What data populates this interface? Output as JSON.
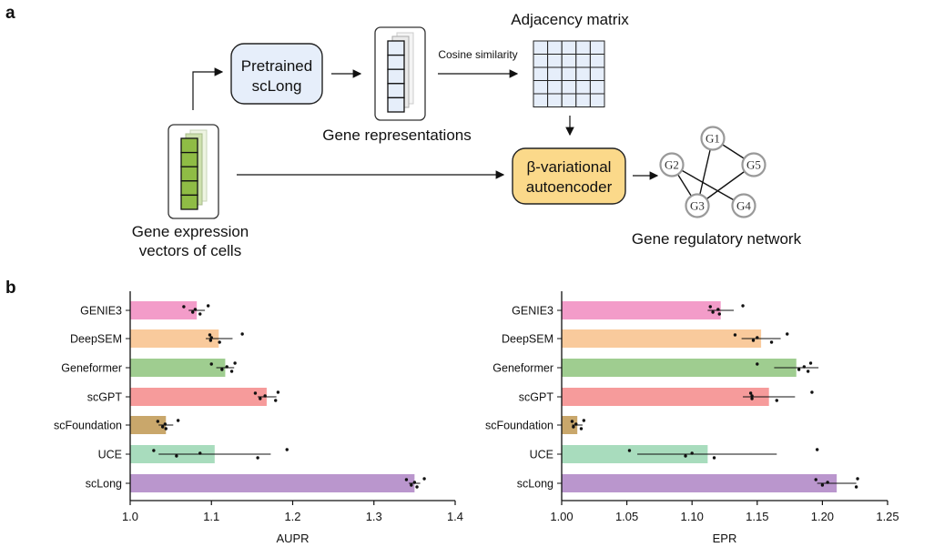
{
  "panel_a": {
    "label": "a",
    "pretrained_box": [
      "Pretrained",
      "scLong"
    ],
    "gene_representations": "Gene representations",
    "cosine_similarity": "Cosine similarity",
    "adjacency_matrix": "Adjacency matrix",
    "vae_box": [
      "β-variational",
      "autoencoder"
    ],
    "gene_expression": [
      "Gene expression",
      "vectors of cells"
    ],
    "grn_label": "Gene regulatory network",
    "nodes": [
      "G1",
      "G2",
      "G3",
      "G4",
      "G5"
    ],
    "edges": [
      [
        "G1",
        "G3"
      ],
      [
        "G1",
        "G5"
      ],
      [
        "G2",
        "G3"
      ],
      [
        "G2",
        "G4"
      ],
      [
        "G5",
        "G3"
      ]
    ],
    "colors": {
      "pretrained": "#e6eefa",
      "vae": "#fbd98a",
      "expression": "#8fbc45",
      "matrix": "#e6eefa"
    }
  },
  "panel_b": {
    "label": "b"
  },
  "chart_data": [
    {
      "type": "bar",
      "orientation": "horizontal",
      "categories": [
        "GENIE3",
        "DeepSEM",
        "Geneformer",
        "scGPT",
        "scFoundation",
        "UCE",
        "scLong"
      ],
      "values": [
        1.082,
        1.109,
        1.117,
        1.168,
        1.044,
        1.104,
        1.35
      ],
      "error_low": [
        1.072,
        1.093,
        1.106,
        1.157,
        1.035,
        1.035,
        1.343
      ],
      "error_high": [
        1.092,
        1.126,
        1.128,
        1.18,
        1.053,
        1.173,
        1.357
      ],
      "points": [
        [
          1.066,
          1.077,
          1.08,
          1.086,
          1.096
        ],
        [
          1.098,
          1.099,
          1.1,
          1.11,
          1.138
        ],
        [
          1.1,
          1.113,
          1.119,
          1.125,
          1.129
        ],
        [
          1.154,
          1.16,
          1.166,
          1.179,
          1.182
        ],
        [
          1.034,
          1.04,
          1.043,
          1.044,
          1.059
        ],
        [
          1.029,
          1.057,
          1.086,
          1.157,
          1.193
        ],
        [
          1.34,
          1.346,
          1.35,
          1.353,
          1.362
        ]
      ],
      "xlabel": "AUPR",
      "xlim": [
        1.0,
        1.4
      ],
      "xticks": [
        "1.0",
        "1.1",
        "1.2",
        "1.3",
        "1.4"
      ],
      "colors": [
        "#f39cc9",
        "#f9ca9c",
        "#9fcd90",
        "#f69b9b",
        "#c9a76b",
        "#a8dcbd",
        "#ba96cd"
      ],
      "grid": false
    },
    {
      "type": "bar",
      "orientation": "horizontal",
      "categories": [
        "GENIE3",
        "DeepSEM",
        "Geneformer",
        "scGPT",
        "scFoundation",
        "UCE",
        "scLong"
      ],
      "values": [
        1.122,
        1.153,
        1.18,
        1.159,
        1.012,
        1.112,
        1.211
      ],
      "error_low": [
        1.112,
        1.138,
        1.163,
        1.139,
        1.008,
        1.058,
        1.196
      ],
      "error_high": [
        1.132,
        1.168,
        1.197,
        1.179,
        1.016,
        1.165,
        1.226
      ],
      "points": [
        [
          1.114,
          1.116,
          1.12,
          1.121,
          1.139
        ],
        [
          1.133,
          1.147,
          1.15,
          1.161,
          1.173
        ],
        [
          1.15,
          1.182,
          1.186,
          1.189,
          1.191
        ],
        [
          1.145,
          1.146,
          1.146,
          1.165,
          1.192
        ],
        [
          1.008,
          1.009,
          1.011,
          1.015,
          1.017
        ],
        [
          1.052,
          1.095,
          1.1,
          1.117,
          1.196
        ],
        [
          1.195,
          1.2,
          1.204,
          1.226,
          1.227
        ]
      ],
      "xlabel": "EPR",
      "xlim": [
        1.0,
        1.25
      ],
      "xticks": [
        "1.00",
        "1.05",
        "1.10",
        "1.15",
        "1.20",
        "1.25"
      ],
      "colors": [
        "#f39cc9",
        "#f9ca9c",
        "#9fcd90",
        "#f69b9b",
        "#c9a76b",
        "#a8dcbd",
        "#ba96cd"
      ],
      "grid": false
    }
  ]
}
